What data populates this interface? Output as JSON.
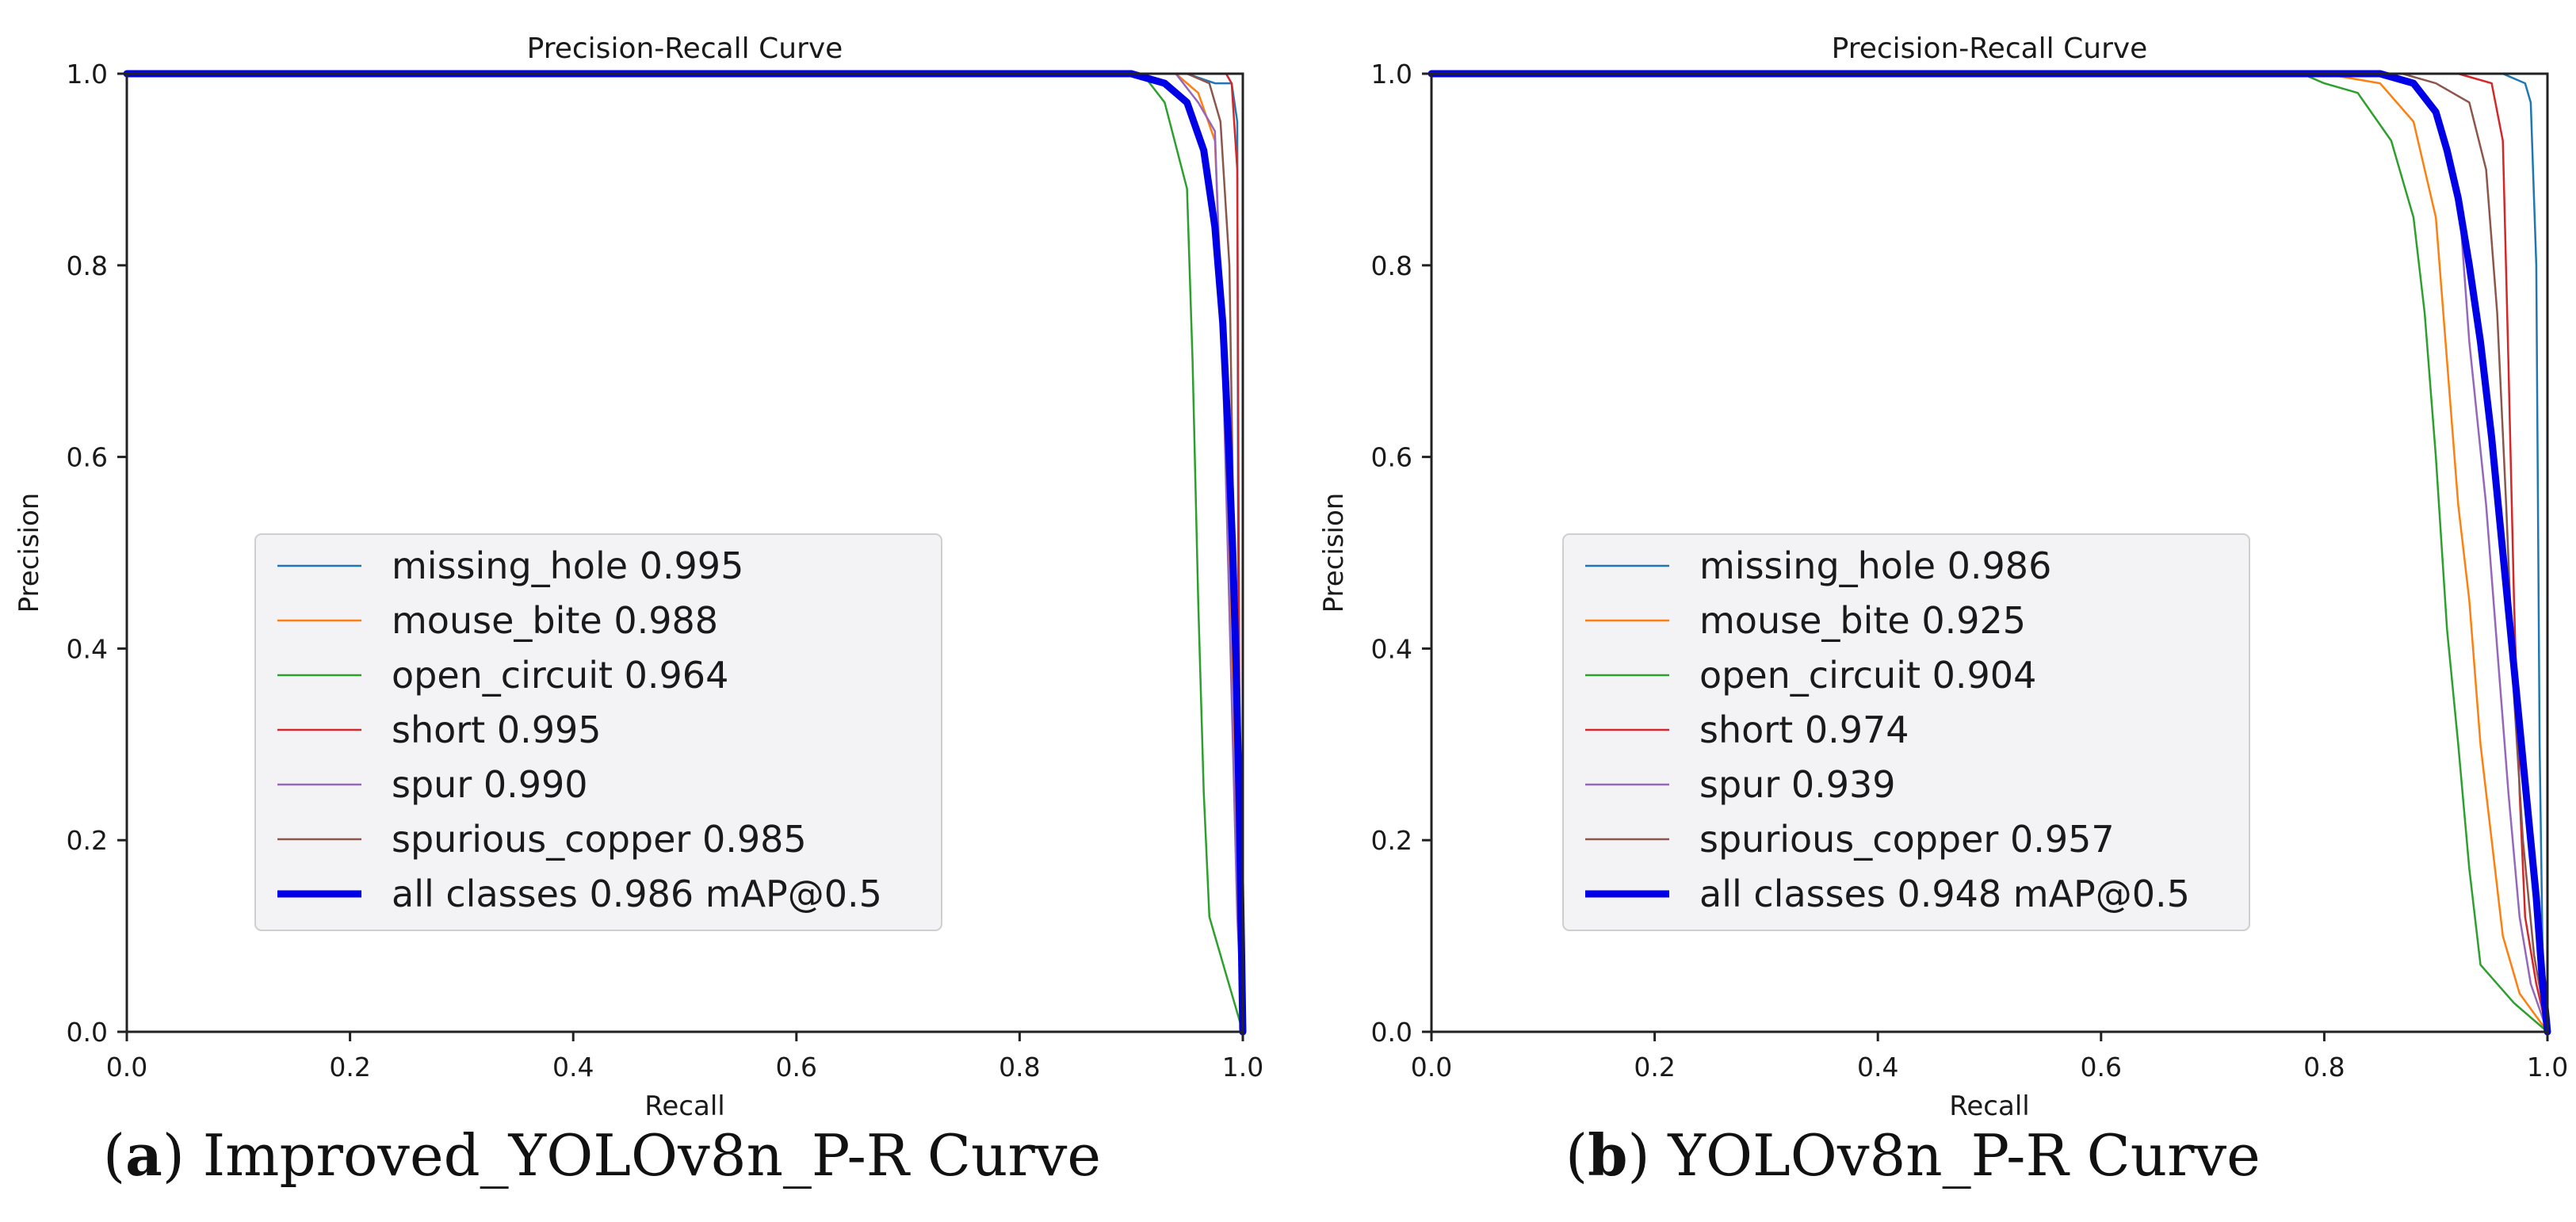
{
  "chart_data": [
    {
      "type": "line",
      "title": "Precision-Recall Curve",
      "xlabel": "Recall",
      "ylabel": "Precision",
      "xlim": [
        0.0,
        1.0
      ],
      "ylim": [
        0.0,
        1.0
      ],
      "xticks": [
        "0.0",
        "0.2",
        "0.4",
        "0.6",
        "0.8",
        "1.0"
      ],
      "yticks": [
        "0.0",
        "0.2",
        "0.4",
        "0.6",
        "0.8",
        "1.0"
      ],
      "legend_position": "center-left",
      "caption": {
        "letter": "a",
        "text": "Improved_YOLOv8n_P-R Curve"
      },
      "series": [
        {
          "name": "missing_hole 0.995",
          "color": "#1f77b4",
          "width": 2.5,
          "points": [
            [
              0,
              1
            ],
            [
              0.95,
              1
            ],
            [
              0.975,
              0.99
            ],
            [
              0.99,
              0.99
            ],
            [
              0.995,
              0.95
            ],
            [
              0.996,
              0.4
            ],
            [
              0.997,
              0.1
            ],
            [
              1,
              0
            ]
          ]
        },
        {
          "name": "mouse_bite 0.988",
          "color": "#ff7f0e",
          "width": 2.5,
          "points": [
            [
              0,
              1
            ],
            [
              0.94,
              1
            ],
            [
              0.96,
              0.98
            ],
            [
              0.975,
              0.93
            ],
            [
              0.983,
              0.7
            ],
            [
              0.99,
              0.4
            ],
            [
              0.996,
              0.15
            ],
            [
              1,
              0
            ]
          ]
        },
        {
          "name": "open_circuit 0.964",
          "color": "#2ca02c",
          "width": 2.5,
          "points": [
            [
              0,
              1
            ],
            [
              0.91,
              1
            ],
            [
              0.93,
              0.97
            ],
            [
              0.95,
              0.88
            ],
            [
              0.955,
              0.7
            ],
            [
              0.96,
              0.45
            ],
            [
              0.965,
              0.25
            ],
            [
              0.97,
              0.12
            ],
            [
              0.985,
              0.06
            ],
            [
              1,
              0
            ]
          ]
        },
        {
          "name": "short 0.995",
          "color": "#d62728",
          "width": 2.5,
          "points": [
            [
              0,
              1
            ],
            [
              0.96,
              1
            ],
            [
              0.985,
              1
            ],
            [
              0.99,
              0.99
            ],
            [
              0.995,
              0.9
            ],
            [
              0.997,
              0.3
            ],
            [
              1,
              0
            ]
          ]
        },
        {
          "name": "spur 0.990",
          "color": "#9467bd",
          "width": 2.5,
          "points": [
            [
              0,
              1
            ],
            [
              0.94,
              1
            ],
            [
              0.96,
              0.97
            ],
            [
              0.975,
              0.94
            ],
            [
              0.982,
              0.7
            ],
            [
              0.99,
              0.35
            ],
            [
              0.995,
              0.12
            ],
            [
              1,
              0
            ]
          ]
        },
        {
          "name": "spurious_copper 0.985",
          "color": "#8c564b",
          "width": 2.5,
          "points": [
            [
              0,
              1
            ],
            [
              0.95,
              1
            ],
            [
              0.97,
              0.99
            ],
            [
              0.98,
              0.95
            ],
            [
              0.988,
              0.8
            ],
            [
              0.992,
              0.5
            ],
            [
              0.996,
              0.2
            ],
            [
              1,
              0
            ]
          ]
        },
        {
          "name": "all classes 0.986 mAP@0.5",
          "color": "#0000e6",
          "width": 9,
          "points": [
            [
              0,
              1
            ],
            [
              0.9,
              1
            ],
            [
              0.93,
              0.99
            ],
            [
              0.95,
              0.97
            ],
            [
              0.965,
              0.92
            ],
            [
              0.975,
              0.84
            ],
            [
              0.982,
              0.74
            ],
            [
              0.987,
              0.62
            ],
            [
              0.991,
              0.5
            ],
            [
              0.994,
              0.38
            ],
            [
              0.997,
              0.22
            ],
            [
              1,
              0
            ]
          ]
        }
      ]
    },
    {
      "type": "line",
      "title": "Precision-Recall Curve",
      "xlabel": "Recall",
      "ylabel": "Precision",
      "xlim": [
        0.0,
        1.0
      ],
      "ylim": [
        0.0,
        1.0
      ],
      "xticks": [
        "0.0",
        "0.2",
        "0.4",
        "0.6",
        "0.8",
        "1.0"
      ],
      "yticks": [
        "0.0",
        "0.2",
        "0.4",
        "0.6",
        "0.8",
        "1.0"
      ],
      "legend_position": "center-left",
      "caption": {
        "letter": "b",
        "text": "YOLOv8n_P-R Curve"
      },
      "series": [
        {
          "name": "missing_hole 0.986",
          "color": "#1f77b4",
          "width": 2.5,
          "points": [
            [
              0,
              1
            ],
            [
              0.9,
              1
            ],
            [
              0.96,
              1
            ],
            [
              0.98,
              0.99
            ],
            [
              0.985,
              0.97
            ],
            [
              0.99,
              0.8
            ],
            [
              0.993,
              0.3
            ],
            [
              0.996,
              0.05
            ],
            [
              1,
              0
            ]
          ]
        },
        {
          "name": "mouse_bite 0.925",
          "color": "#ff7f0e",
          "width": 2.5,
          "points": [
            [
              0,
              1
            ],
            [
              0.8,
              1
            ],
            [
              0.85,
              0.99
            ],
            [
              0.88,
              0.95
            ],
            [
              0.9,
              0.85
            ],
            [
              0.91,
              0.7
            ],
            [
              0.92,
              0.55
            ],
            [
              0.93,
              0.45
            ],
            [
              0.94,
              0.3
            ],
            [
              0.95,
              0.2
            ],
            [
              0.96,
              0.1
            ],
            [
              0.975,
              0.04
            ],
            [
              1,
              0
            ]
          ]
        },
        {
          "name": "open_circuit 0.904",
          "color": "#2ca02c",
          "width": 2.5,
          "points": [
            [
              0,
              1
            ],
            [
              0.78,
              1
            ],
            [
              0.8,
              0.99
            ],
            [
              0.83,
              0.98
            ],
            [
              0.86,
              0.93
            ],
            [
              0.88,
              0.85
            ],
            [
              0.89,
              0.75
            ],
            [
              0.9,
              0.6
            ],
            [
              0.91,
              0.42
            ],
            [
              0.92,
              0.3
            ],
            [
              0.93,
              0.17
            ],
            [
              0.94,
              0.07
            ],
            [
              0.97,
              0.03
            ],
            [
              1,
              0
            ]
          ]
        },
        {
          "name": "short 0.974",
          "color": "#d62728",
          "width": 2.5,
          "points": [
            [
              0,
              1
            ],
            [
              0.88,
              1
            ],
            [
              0.92,
              1
            ],
            [
              0.95,
              0.99
            ],
            [
              0.96,
              0.93
            ],
            [
              0.965,
              0.7
            ],
            [
              0.97,
              0.45
            ],
            [
              0.975,
              0.25
            ],
            [
              0.98,
              0.12
            ],
            [
              0.99,
              0.05
            ],
            [
              1,
              0
            ]
          ]
        },
        {
          "name": "spur 0.939",
          "color": "#9467bd",
          "width": 2.5,
          "points": [
            [
              0,
              1
            ],
            [
              0.85,
              1
            ],
            [
              0.88,
              0.99
            ],
            [
              0.9,
              0.96
            ],
            [
              0.92,
              0.88
            ],
            [
              0.93,
              0.72
            ],
            [
              0.945,
              0.55
            ],
            [
              0.955,
              0.4
            ],
            [
              0.965,
              0.25
            ],
            [
              0.975,
              0.12
            ],
            [
              0.985,
              0.05
            ],
            [
              1,
              0
            ]
          ]
        },
        {
          "name": "spurious_copper 0.957",
          "color": "#8c564b",
          "width": 2.5,
          "points": [
            [
              0,
              1
            ],
            [
              0.87,
              1
            ],
            [
              0.9,
              0.99
            ],
            [
              0.93,
              0.97
            ],
            [
              0.945,
              0.9
            ],
            [
              0.955,
              0.75
            ],
            [
              0.963,
              0.55
            ],
            [
              0.97,
              0.35
            ],
            [
              0.978,
              0.2
            ],
            [
              0.988,
              0.08
            ],
            [
              1,
              0
            ]
          ]
        },
        {
          "name": "all classes 0.948 mAP@0.5",
          "color": "#0000e6",
          "width": 9,
          "points": [
            [
              0,
              1
            ],
            [
              0.85,
              1
            ],
            [
              0.88,
              0.99
            ],
            [
              0.9,
              0.96
            ],
            [
              0.91,
              0.92
            ],
            [
              0.92,
              0.87
            ],
            [
              0.93,
              0.8
            ],
            [
              0.94,
              0.72
            ],
            [
              0.95,
              0.62
            ],
            [
              0.96,
              0.5
            ],
            [
              0.97,
              0.38
            ],
            [
              0.98,
              0.26
            ],
            [
              0.99,
              0.14
            ],
            [
              0.995,
              0.06
            ],
            [
              1,
              0
            ]
          ]
        }
      ]
    }
  ]
}
